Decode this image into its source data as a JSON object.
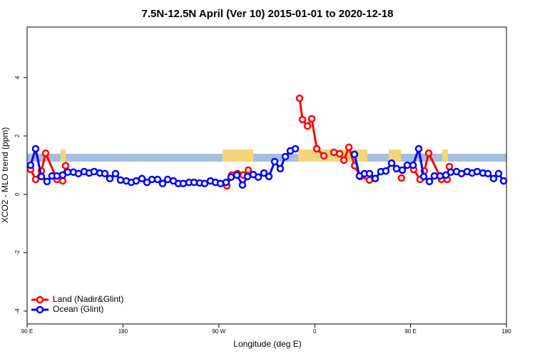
{
  "chart_data": {
    "type": "line",
    "title": "7.5N-12.5N April (Ver 10)   2015-01-01 to 2020-12-18",
    "x_label": "Longitude (deg E)",
    "y_label": "XCO2 - MLO trend (ppm)",
    "xlim": [
      90,
      540
    ],
    "ylim": [
      -4.44,
      5.73
    ],
    "xticks": [
      {
        "value": 90,
        "label": "90 E"
      },
      {
        "value": 180,
        "label": "180"
      },
      {
        "value": 270,
        "label": "90 W"
      },
      {
        "value": 360,
        "label": "0"
      },
      {
        "value": 450,
        "label": "90 E"
      },
      {
        "value": 540,
        "label": "180"
      }
    ],
    "yticks": [
      -4,
      -2,
      0,
      2,
      4
    ],
    "legend": "bottom-left",
    "band": {
      "color": "#a7bedf",
      "range": [
        1.12,
        1.39
      ]
    },
    "land_mask": {
      "color": "#f5d57a",
      "ranges": [
        [
          121.5,
          126.2
        ],
        [
          273.5,
          302.3
        ],
        [
          344.5,
          409.4
        ],
        [
          429.5,
          440.9
        ],
        [
          479.7,
          485.1
        ]
      ]
    },
    "series": [
      {
        "name": "Land (Nadir&Glint)",
        "color": "#ff0000",
        "x": [
          93.3,
          98.0,
          103.4,
          107.4,
          118.1,
          123.4,
          126.2,
          null,
          277.5,
          282.2,
          287.5,
          292.9,
          297.6,
          null,
          345.8,
          348.5,
          353.2,
          357.2,
          361.9,
          368.6,
          null,
          378.0,
          383.4,
          387.4,
          392.1,
          397.5,
          402.8,
          411.4,
          null,
          441.5,
          null,
          452.9,
          458.9,
          462.9,
          467.0,
          479.0,
          484.4,
          486.4
        ],
        "values": [
          0.85,
          0.51,
          0.8,
          1.41,
          0.51,
          0.46,
          0.98,
          null,
          0.29,
          0.66,
          0.71,
          0.66,
          0.83,
          null,
          3.29,
          2.56,
          2.34,
          2.59,
          1.56,
          1.32,
          null,
          1.44,
          1.39,
          1.17,
          1.61,
          0.98,
          0.61,
          0.49,
          null,
          0.56,
          null,
          0.85,
          0.51,
          0.8,
          1.41,
          0.51,
          0.51,
          0.95
        ]
      },
      {
        "name": "Ocean (Glint)",
        "color": "#0000ff",
        "x": [
          93.3,
          98.0,
          103.4,
          108.7,
          113.4,
          118.1,
          123.4,
          128.2,
          133.5,
          138.2,
          143.6,
          148.3,
          152.9,
          158.3,
          163.0,
          167.7,
          173.0,
          177.7,
          183.1,
          187.8,
          192.4,
          197.8,
          202.5,
          207.2,
          212.5,
          217.2,
          221.9,
          227.3,
          232.0,
          236.6,
          242.0,
          246.7,
          252.0,
          256.7,
          262.1,
          266.8,
          271.5,
          276.8,
          281.5,
          286.9,
          292.2,
          296.9,
          302.3,
          307.0,
          312.3,
          317.0,
          322.4,
          327.7,
          332.4,
          337.1,
          341.8,
          null,
          397.3,
          402.0,
          406.7,
          411.4,
          416.8,
          422.1,
          426.8,
          432.2,
          436.8,
          442.2,
          446.9,
          452.3,
          457.6,
          462.3,
          467.7,
          472.3,
          477.7,
          483.1,
          487.7,
          493.1,
          497.8,
          503.1,
          507.8,
          512.5,
          517.9,
          522.6,
          527.9,
          532.6,
          537.3
        ],
        "values": [
          1.0,
          1.56,
          0.61,
          0.44,
          0.63,
          0.63,
          0.66,
          0.76,
          0.76,
          0.71,
          0.78,
          0.73,
          0.78,
          0.73,
          0.71,
          0.54,
          0.71,
          0.49,
          0.46,
          0.41,
          0.46,
          0.54,
          0.41,
          0.51,
          0.51,
          0.37,
          0.51,
          0.46,
          0.37,
          0.37,
          0.41,
          0.41,
          0.39,
          0.37,
          0.46,
          0.41,
          0.37,
          0.41,
          0.59,
          0.66,
          0.32,
          0.61,
          0.68,
          0.59,
          0.73,
          0.61,
          1.12,
          0.88,
          1.29,
          1.49,
          1.56,
          null,
          1.37,
          0.63,
          0.71,
          0.71,
          0.54,
          0.78,
          0.8,
          1.07,
          0.88,
          0.83,
          1.0,
          1.0,
          1.56,
          0.61,
          0.44,
          0.63,
          0.63,
          0.66,
          0.76,
          0.78,
          0.71,
          0.78,
          0.73,
          0.78,
          0.73,
          0.71,
          0.54,
          0.71,
          0.46
        ]
      }
    ]
  }
}
